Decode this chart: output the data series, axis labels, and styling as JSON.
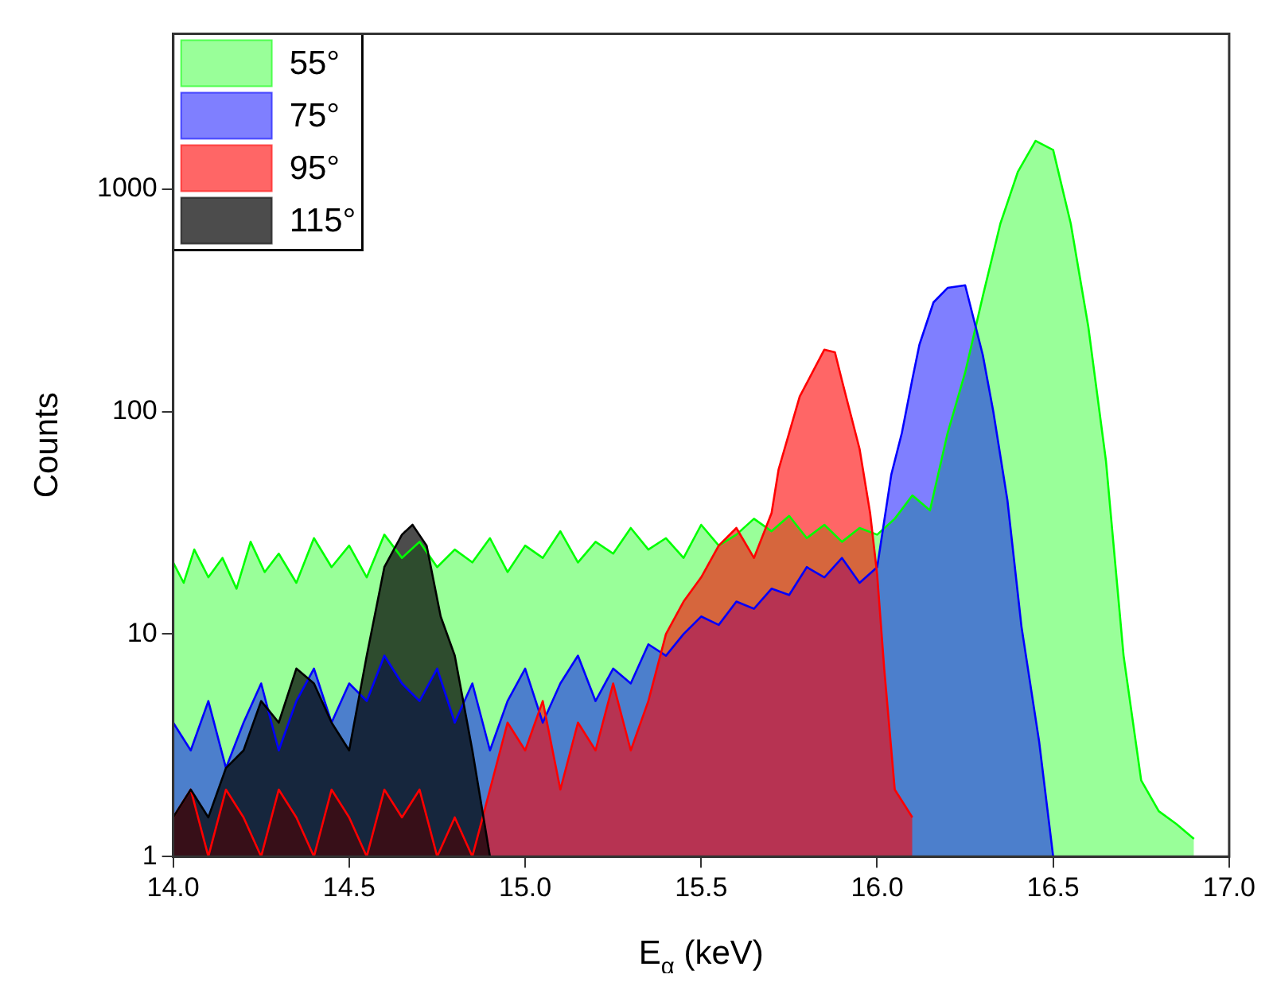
{
  "chart_data": {
    "type": "area",
    "xlabel": "E$_{α}$ (keV)",
    "ylabel": "Counts",
    "log": "y",
    "grid": false,
    "legend": "top left",
    "xlim": [
      14,
      17
    ],
    "xticks": [
      {
        "value": 14,
        "label": "14.0"
      },
      {
        "value": 14.5,
        "label": "14.5"
      },
      {
        "value": 15,
        "label": "15.0"
      },
      {
        "value": 15.5,
        "label": "15.5"
      },
      {
        "value": 16,
        "label": "16.0"
      },
      {
        "value": 16.5,
        "label": "16.5"
      },
      {
        "value": 17,
        "label": "17.0"
      }
    ],
    "ylim": [
      1,
      5000
    ],
    "yticks": [
      1,
      10,
      100,
      1000
    ],
    "series": [
      {
        "name": "55°",
        "color": "#00ff00",
        "x": [
          14.0,
          14.03,
          14.06,
          14.1,
          14.14,
          14.18,
          14.22,
          14.26,
          14.3,
          14.35,
          14.4,
          14.45,
          14.5,
          14.55,
          14.6,
          14.65,
          14.7,
          14.75,
          14.8,
          14.85,
          14.9,
          14.95,
          15.0,
          15.05,
          15.1,
          15.15,
          15.2,
          15.25,
          15.3,
          15.35,
          15.4,
          15.45,
          15.5,
          15.55,
          15.6,
          15.65,
          15.7,
          15.75,
          15.8,
          15.85,
          15.9,
          15.95,
          16.0,
          16.05,
          16.1,
          16.15,
          16.2,
          16.25,
          16.3,
          16.35,
          16.4,
          16.45,
          16.5,
          16.55,
          16.6,
          16.65,
          16.7,
          16.75,
          16.8,
          16.85,
          16.9
        ],
        "values": [
          21,
          17,
          24,
          18,
          22,
          16,
          26,
          19,
          23,
          17,
          27,
          20,
          25,
          18,
          28,
          22,
          26,
          20,
          24,
          21,
          27,
          19,
          25,
          22,
          29,
          21,
          26,
          23,
          30,
          24,
          27,
          22,
          31,
          25,
          28,
          33,
          29,
          34,
          27,
          31,
          26,
          30,
          28,
          33,
          42,
          36,
          80,
          150,
          330,
          700,
          1200,
          1650,
          1500,
          700,
          240,
          60,
          8,
          2.2,
          1.6,
          1.4,
          1.2
        ]
      },
      {
        "name": "75°",
        "color": "#0000ff",
        "x": [
          14.0,
          14.05,
          14.1,
          14.15,
          14.2,
          14.25,
          14.3,
          14.35,
          14.4,
          14.45,
          14.5,
          14.55,
          14.6,
          14.65,
          14.7,
          14.75,
          14.8,
          14.85,
          14.9,
          14.95,
          15.0,
          15.05,
          15.1,
          15.15,
          15.2,
          15.25,
          15.3,
          15.35,
          15.4,
          15.45,
          15.5,
          15.55,
          15.6,
          15.65,
          15.7,
          15.75,
          15.8,
          15.85,
          15.9,
          15.95,
          16.0,
          16.04,
          16.07,
          16.1,
          16.12,
          16.16,
          16.2,
          16.25,
          16.3,
          16.33,
          16.37,
          16.41,
          16.46,
          16.5
        ],
        "values": [
          4,
          3,
          5,
          2.5,
          4,
          6,
          3,
          5,
          7,
          4,
          6,
          5,
          8,
          6,
          5,
          7,
          4,
          6,
          3,
          5,
          7,
          4,
          6,
          8,
          5,
          7,
          6,
          9,
          8,
          10,
          12,
          11,
          14,
          13,
          16,
          15,
          20,
          18,
          22,
          17,
          20,
          52,
          80,
          140,
          200,
          310,
          360,
          370,
          180,
          100,
          40,
          10.8,
          3.3,
          1
        ]
      },
      {
        "name": "95°",
        "color": "#ff0000",
        "x": [
          14.0,
          14.05,
          14.1,
          14.15,
          14.2,
          14.25,
          14.3,
          14.35,
          14.4,
          14.45,
          14.5,
          14.55,
          14.6,
          14.65,
          14.7,
          14.75,
          14.8,
          14.85,
          14.9,
          14.95,
          15.0,
          15.05,
          15.1,
          15.15,
          15.2,
          15.25,
          15.3,
          15.35,
          15.4,
          15.45,
          15.5,
          15.55,
          15.6,
          15.65,
          15.7,
          15.72,
          15.78,
          15.85,
          15.88,
          15.9,
          15.95,
          15.98,
          16.0,
          16.02,
          16.05,
          16.1
        ],
        "values": [
          1.5,
          2,
          1,
          2,
          1.5,
          1,
          2,
          1.5,
          1,
          2,
          1.5,
          1,
          2,
          1.5,
          2,
          1,
          1.5,
          1,
          2,
          4,
          3,
          5,
          2,
          4,
          3,
          6,
          3,
          5,
          10,
          14,
          18,
          25,
          30,
          22,
          35,
          55,
          117,
          190,
          185,
          138,
          68,
          35,
          18.5,
          7,
          2,
          1.5
        ]
      },
      {
        "name": "115°",
        "color": "#000000",
        "x": [
          14.0,
          14.05,
          14.1,
          14.15,
          14.2,
          14.25,
          14.3,
          14.35,
          14.4,
          14.45,
          14.5,
          14.55,
          14.6,
          14.65,
          14.68,
          14.72,
          14.76,
          14.8,
          14.85,
          14.9
        ],
        "values": [
          1.5,
          2,
          1.5,
          2.5,
          3,
          5,
          4,
          7,
          6,
          4,
          3,
          8,
          20,
          28,
          31,
          25,
          12,
          8,
          3,
          1
        ]
      }
    ]
  }
}
